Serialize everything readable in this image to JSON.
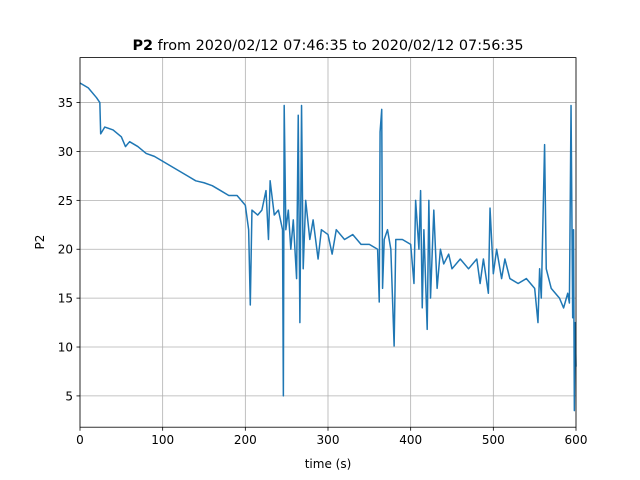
{
  "chart_data": {
    "type": "line",
    "title": {
      "bold": "P2",
      "text": "from 2020/02/12 07:46:35 to 2020/02/12 07:56:35"
    },
    "x_label": "time (s)",
    "y_label": "P2",
    "x": [
      0,
      10,
      20,
      24,
      25,
      30,
      40,
      50,
      55,
      60,
      70,
      80,
      90,
      100,
      110,
      120,
      130,
      140,
      150,
      160,
      170,
      180,
      190,
      200,
      204,
      206,
      208,
      215,
      220,
      225,
      228,
      230,
      235,
      240,
      245,
      246,
      247,
      249,
      252,
      255,
      258,
      262,
      264,
      266,
      268,
      270,
      273,
      278,
      282,
      288,
      292,
      300,
      305,
      310,
      320,
      330,
      340,
      350,
      360,
      362,
      363,
      365,
      366,
      368,
      372,
      376,
      380,
      382,
      390,
      400,
      404,
      406,
      410,
      412,
      414,
      416,
      420,
      422,
      424,
      428,
      432,
      436,
      440,
      446,
      450,
      460,
      470,
      480,
      484,
      488,
      494,
      496,
      500,
      504,
      510,
      514,
      520,
      530,
      540,
      550,
      554,
      556,
      558,
      562,
      564,
      570,
      580,
      585,
      590,
      592,
      594,
      596,
      597,
      598,
      599,
      600
    ],
    "series": [
      {
        "name": "P2",
        "color": "#1f77b4",
        "values": [
          37,
          36.5,
          35.5,
          35,
          31.8,
          32.5,
          32.2,
          31.5,
          30.5,
          31,
          30.5,
          29.8,
          29.5,
          29,
          28.5,
          28,
          27.5,
          27,
          26.8,
          26.5,
          26,
          25.5,
          25.5,
          24.5,
          22,
          14.3,
          24,
          23.5,
          24,
          26,
          21,
          27,
          23.5,
          24,
          22,
          5,
          34.7,
          22,
          24,
          20,
          23,
          17,
          33.7,
          12.5,
          34.7,
          18,
          25,
          21,
          23,
          19,
          22,
          21.5,
          19.5,
          22,
          21,
          21.5,
          20.5,
          20.5,
          20,
          14.6,
          32,
          34.3,
          16,
          21,
          22,
          20,
          10.1,
          21,
          21,
          20.5,
          16.5,
          25,
          20,
          26,
          14,
          22,
          11.8,
          25,
          15,
          24,
          16,
          20,
          18.5,
          19.5,
          18,
          19,
          18,
          19,
          16.5,
          19,
          15.5,
          24.2,
          17.5,
          20,
          17,
          19,
          17,
          16.5,
          17,
          16,
          12.5,
          18,
          15,
          30.7,
          18,
          16,
          15,
          14,
          15.5,
          14.5,
          34.7,
          13,
          22,
          3.5,
          12.5,
          8
        ]
      }
    ],
    "xlim": [
      0,
      600
    ],
    "ylim": [
      1.8,
      39.6
    ],
    "xticks": [
      0,
      100,
      200,
      300,
      400,
      500,
      600
    ],
    "yticks": [
      5,
      10,
      15,
      20,
      25,
      30,
      35
    ],
    "grid": true
  }
}
